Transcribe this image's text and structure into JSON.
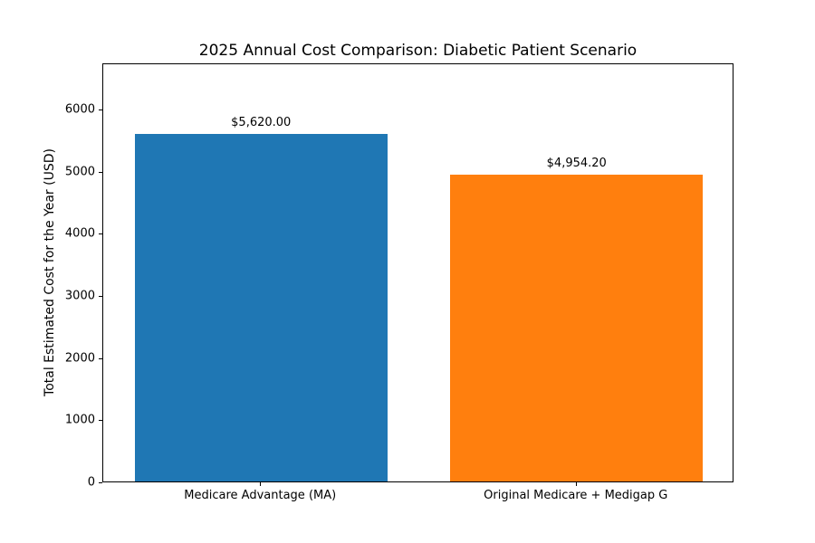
{
  "chart_data": {
    "type": "bar",
    "title": "2025 Annual Cost Comparison: Diabetic Patient Scenario",
    "categories": [
      "Medicare Advantage (MA)",
      "Original Medicare + Medigap G"
    ],
    "values": [
      5620.0,
      4954.2
    ],
    "value_labels": [
      "$5,620.00",
      "$4,954.20"
    ],
    "bar_colors": [
      "#1f77b4",
      "#ff7f0e"
    ],
    "xlabel": "",
    "ylabel": "Total Estimated Cost for the Year (USD)",
    "ylim": [
      0,
      6744
    ],
    "yticks": [
      0,
      1000,
      2000,
      3000,
      4000,
      5000,
      6000
    ],
    "grid": false,
    "legend": "none",
    "background_color": "#ffffff",
    "spine_color": "#000000"
  }
}
